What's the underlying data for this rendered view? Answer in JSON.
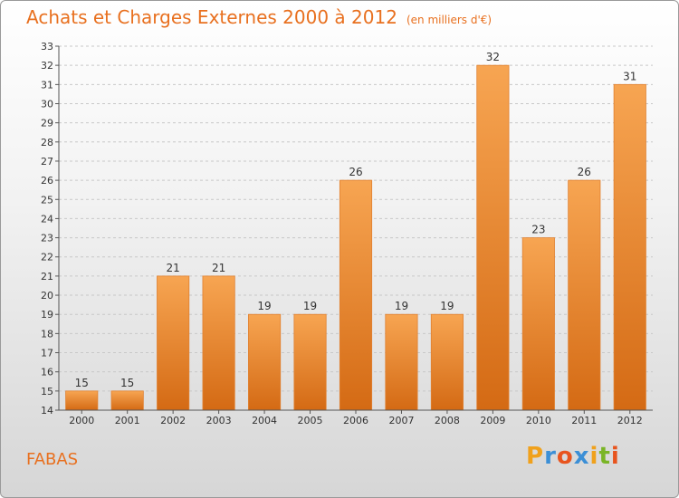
{
  "header": {
    "title": "Achats et Charges Externes 2000 à 2012",
    "subtitle": "(en milliers d'€)"
  },
  "footer": {
    "commune": "FABAS",
    "logo_letters": [
      "P",
      "r",
      "o",
      "x",
      "i",
      "t",
      "i"
    ],
    "logo_colors": [
      "#f0a11c",
      "#3c8fd6",
      "#e8541e",
      "#3c8fd6",
      "#f0a11c",
      "#7ab526",
      "#e8541e"
    ]
  },
  "chart_data": {
    "type": "bar",
    "title": "Achats et Charges Externes 2000 à 2012",
    "categories": [
      "2000",
      "2001",
      "2002",
      "2003",
      "2004",
      "2005",
      "2006",
      "2007",
      "2008",
      "2009",
      "2010",
      "2011",
      "2012"
    ],
    "values": [
      15,
      15,
      21,
      21,
      19,
      19,
      26,
      19,
      19,
      32,
      23,
      26,
      31
    ],
    "ylim": [
      14,
      33
    ],
    "yticks": [
      14,
      15,
      16,
      17,
      18,
      19,
      20,
      21,
      22,
      23,
      24,
      25,
      26,
      27,
      28,
      29,
      30,
      31,
      32,
      33
    ],
    "grid": true,
    "legend": "none",
    "bar_color": "#f08a2c"
  }
}
